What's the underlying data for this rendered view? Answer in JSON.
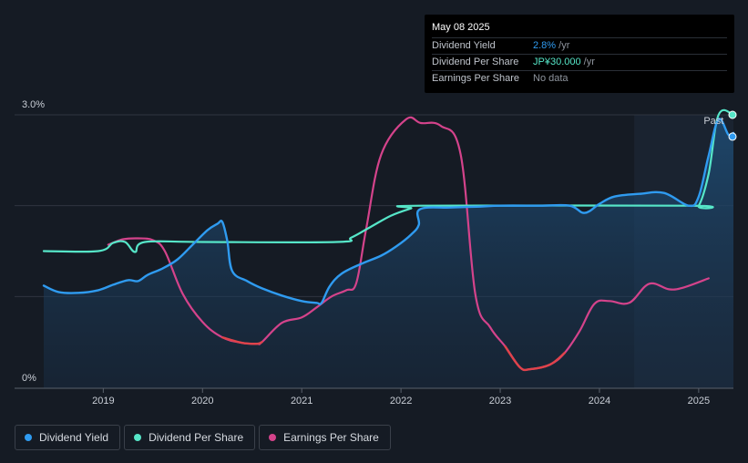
{
  "tooltip": {
    "date": "May 08 2025",
    "rows": [
      {
        "label": "Dividend Yield",
        "value": "2.8%",
        "unit": " /yr",
        "color": "#2f9bf0"
      },
      {
        "label": "Dividend Per Share",
        "value": "JP¥30.000",
        "unit": " /yr",
        "color": "#56e6c8"
      },
      {
        "label": "Earnings Per Share",
        "value": "No data",
        "unit": "",
        "color": "#8f959e"
      }
    ]
  },
  "legend": [
    {
      "label": "Dividend Yield",
      "color": "#2f9bf0"
    },
    {
      "label": "Dividend Per Share",
      "color": "#56e6c8"
    },
    {
      "label": "Earnings Per Share",
      "color": "#d4438b"
    }
  ],
  "chart_data": {
    "type": "line",
    "title": "",
    "y_labels": [
      "3.0%",
      "0%"
    ],
    "ylim": [
      0,
      3.0
    ],
    "xlim": [
      2018.4,
      2025.35
    ],
    "x_ticks": [
      2019,
      2020,
      2021,
      2022,
      2023,
      2024,
      2025
    ],
    "x_tick_labels": [
      "2019",
      "2020",
      "2021",
      "2022",
      "2023",
      "2024",
      "2025"
    ],
    "past_label": "Past",
    "forecast_start": 2024.35,
    "series": [
      {
        "name": "Dividend Yield",
        "unit": "%",
        "color": "#2f9bf0",
        "points": [
          [
            2018.4,
            1.12
          ],
          [
            2018.55,
            1.05
          ],
          [
            2018.75,
            1.04
          ],
          [
            2018.95,
            1.07
          ],
          [
            2019.1,
            1.13
          ],
          [
            2019.25,
            1.18
          ],
          [
            2019.35,
            1.17
          ],
          [
            2019.45,
            1.24
          ],
          [
            2019.6,
            1.31
          ],
          [
            2019.75,
            1.41
          ],
          [
            2019.9,
            1.57
          ],
          [
            2020.05,
            1.73
          ],
          [
            2020.15,
            1.8
          ],
          [
            2020.2,
            1.82
          ],
          [
            2020.25,
            1.61
          ],
          [
            2020.3,
            1.28
          ],
          [
            2020.45,
            1.17
          ],
          [
            2020.6,
            1.09
          ],
          [
            2020.8,
            1.01
          ],
          [
            2021.0,
            0.95
          ],
          [
            2021.15,
            0.93
          ],
          [
            2021.2,
            0.93
          ],
          [
            2021.28,
            1.11
          ],
          [
            2021.4,
            1.25
          ],
          [
            2021.6,
            1.36
          ],
          [
            2021.8,
            1.45
          ],
          [
            2021.95,
            1.55
          ],
          [
            2022.1,
            1.68
          ],
          [
            2022.18,
            1.79
          ],
          [
            2022.19,
            1.96
          ],
          [
            2022.5,
            1.98
          ],
          [
            2022.8,
            1.99
          ],
          [
            2023.0,
            2.0
          ],
          [
            2023.4,
            2.0
          ],
          [
            2023.7,
            2.0
          ],
          [
            2023.85,
            1.92
          ],
          [
            2024.0,
            2.02
          ],
          [
            2024.15,
            2.1
          ],
          [
            2024.4,
            2.13
          ],
          [
            2024.65,
            2.14
          ],
          [
            2024.9,
            2.0
          ],
          [
            2025.0,
            2.1
          ],
          [
            2025.1,
            2.55
          ],
          [
            2025.2,
            2.95
          ],
          [
            2025.3,
            2.78
          ],
          [
            2025.35,
            2.8
          ]
        ]
      },
      {
        "name": "Dividend Per Share",
        "unit": "JP¥",
        "color": "#56e6c8",
        "points": [
          [
            2018.4,
            1.5
          ],
          [
            2018.95,
            1.5
          ],
          [
            2019.1,
            1.59
          ],
          [
            2019.22,
            1.6
          ],
          [
            2019.32,
            1.49
          ],
          [
            2019.42,
            1.6
          ],
          [
            2020.0,
            1.6
          ],
          [
            2021.35,
            1.6
          ],
          [
            2021.5,
            1.65
          ],
          [
            2021.7,
            1.77
          ],
          [
            2021.9,
            1.89
          ],
          [
            2022.1,
            1.97
          ],
          [
            2022.2,
            2.0
          ],
          [
            2024.9,
            2.0
          ],
          [
            2025.0,
            2.0
          ],
          [
            2025.1,
            2.35
          ],
          [
            2025.2,
            3.0
          ],
          [
            2025.35,
            3.0
          ]
        ]
      },
      {
        "name": "Earnings Per Share",
        "unit": "JP¥",
        "color": "#d4438b",
        "color_low": "#e0434b",
        "points": [
          [
            2019.05,
            1.57
          ],
          [
            2019.2,
            1.63
          ],
          [
            2019.35,
            1.64
          ],
          [
            2019.5,
            1.62
          ],
          [
            2019.62,
            1.5
          ],
          [
            2019.8,
            1.03
          ],
          [
            2020.0,
            0.72
          ],
          [
            2020.2,
            0.55
          ],
          [
            2020.4,
            0.49
          ],
          [
            2020.55,
            0.48
          ],
          [
            2020.6,
            0.5
          ],
          [
            2020.8,
            0.71
          ],
          [
            2021.0,
            0.77
          ],
          [
            2021.15,
            0.88
          ],
          [
            2021.3,
            1.0
          ],
          [
            2021.45,
            1.07
          ],
          [
            2021.55,
            1.15
          ],
          [
            2021.65,
            1.75
          ],
          [
            2021.8,
            2.56
          ],
          [
            2022.05,
            2.95
          ],
          [
            2022.2,
            2.91
          ],
          [
            2022.4,
            2.88
          ],
          [
            2022.6,
            2.57
          ],
          [
            2022.75,
            1.02
          ],
          [
            2022.9,
            0.66
          ],
          [
            2023.05,
            0.45
          ],
          [
            2023.2,
            0.22
          ],
          [
            2023.3,
            0.2
          ],
          [
            2023.5,
            0.25
          ],
          [
            2023.65,
            0.38
          ],
          [
            2023.8,
            0.62
          ],
          [
            2023.95,
            0.92
          ],
          [
            2024.1,
            0.95
          ],
          [
            2024.3,
            0.93
          ],
          [
            2024.5,
            1.14
          ],
          [
            2024.7,
            1.08
          ],
          [
            2024.85,
            1.1
          ],
          [
            2025.1,
            1.2
          ]
        ]
      }
    ]
  }
}
